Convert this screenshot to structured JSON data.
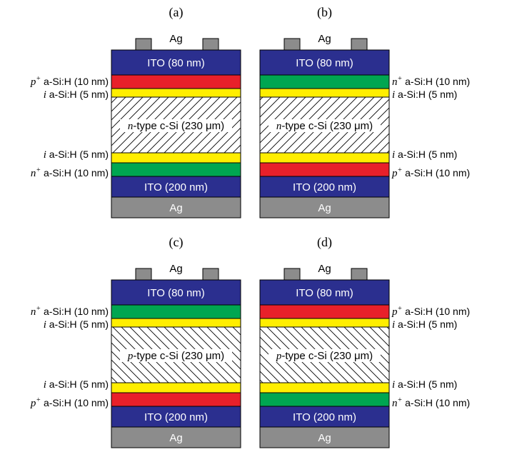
{
  "panels": [
    {
      "label": "(a)",
      "contact_label": "Ag",
      "top_ito": "ITO (80 nm)",
      "bottom_ito": "ITO (200 nm)",
      "bottom_ag": "Ag",
      "wafer": {
        "type_prefix": "n",
        "type_suffix": "-type c-Si (230 μm)"
      },
      "wafer_hatch": "forward",
      "layers_top": [
        {
          "pre": "p",
          "sup": "+",
          "text": " a-Si:H (10 nm)",
          "color": "#e8202a"
        },
        {
          "pre": "i",
          "sup": "",
          "text": " a-Si:H (5 nm)",
          "color": "#ffee00"
        }
      ],
      "layers_bottom": [
        {
          "pre": "i",
          "sup": "",
          "text": " a-Si:H (5 nm)",
          "color": "#ffee00"
        },
        {
          "pre": "n",
          "sup": "+",
          "text": " a-Si:H (10 nm)",
          "color": "#00a651"
        }
      ],
      "labels_side": "left"
    },
    {
      "label": "(b)",
      "contact_label": "Ag",
      "top_ito": "ITO (80 nm)",
      "bottom_ito": "ITO (200 nm)",
      "bottom_ag": "Ag",
      "wafer": {
        "type_prefix": "n",
        "type_suffix": "-type c-Si (230 μm)"
      },
      "wafer_hatch": "forward",
      "layers_top": [
        {
          "pre": "n",
          "sup": "+",
          "text": " a-Si:H (10 nm)",
          "color": "#00a651"
        },
        {
          "pre": "i",
          "sup": "",
          "text": " a-Si:H (5 nm)",
          "color": "#ffee00"
        }
      ],
      "layers_bottom": [
        {
          "pre": "i",
          "sup": "",
          "text": " a-Si:H (5 nm)",
          "color": "#ffee00"
        },
        {
          "pre": "p",
          "sup": "+",
          "text": " a-Si:H (10 nm)",
          "color": "#e8202a"
        }
      ],
      "labels_side": "right"
    },
    {
      "label": "(c)",
      "contact_label": "Ag",
      "top_ito": "ITO (80 nm)",
      "bottom_ito": "ITO (200 nm)",
      "bottom_ag": "Ag",
      "wafer": {
        "type_prefix": "p",
        "type_suffix": "-type c-Si (230 μm)"
      },
      "wafer_hatch": "backward",
      "layers_top": [
        {
          "pre": "n",
          "sup": "+",
          "text": " a-Si:H (10 nm)",
          "color": "#00a651"
        },
        {
          "pre": "i",
          "sup": "",
          "text": " a-Si:H (5 nm)",
          "color": "#ffee00"
        }
      ],
      "layers_bottom": [
        {
          "pre": "i",
          "sup": "",
          "text": " a-Si:H (5 nm)",
          "color": "#ffee00"
        },
        {
          "pre": "p",
          "sup": "+",
          "text": " a-Si:H (10 nm)",
          "color": "#e8202a"
        }
      ],
      "labels_side": "left"
    },
    {
      "label": "(d)",
      "contact_label": "Ag",
      "top_ito": "ITO (80 nm)",
      "bottom_ito": "ITO (200 nm)",
      "bottom_ag": "Ag",
      "wafer": {
        "type_prefix": "p",
        "type_suffix": "-type c-Si (230 μm)"
      },
      "wafer_hatch": "backward",
      "layers_top": [
        {
          "pre": "p",
          "sup": "+",
          "text": " a-Si:H (10 nm)",
          "color": "#e8202a"
        },
        {
          "pre": "i",
          "sup": "",
          "text": " a-Si:H (5 nm)",
          "color": "#ffee00"
        }
      ],
      "layers_bottom": [
        {
          "pre": "i",
          "sup": "",
          "text": " a-Si:H (5 nm)",
          "color": "#ffee00"
        },
        {
          "pre": "n",
          "sup": "+",
          "text": " a-Si:H (10 nm)",
          "color": "#00a651"
        }
      ],
      "labels_side": "right"
    }
  ],
  "colors": {
    "ito": "#2b2f8f",
    "ag": "#8c8c8c",
    "contact": "#8c8c8c",
    "wafer_bg": "#ffffff",
    "hatch": "#000000"
  }
}
